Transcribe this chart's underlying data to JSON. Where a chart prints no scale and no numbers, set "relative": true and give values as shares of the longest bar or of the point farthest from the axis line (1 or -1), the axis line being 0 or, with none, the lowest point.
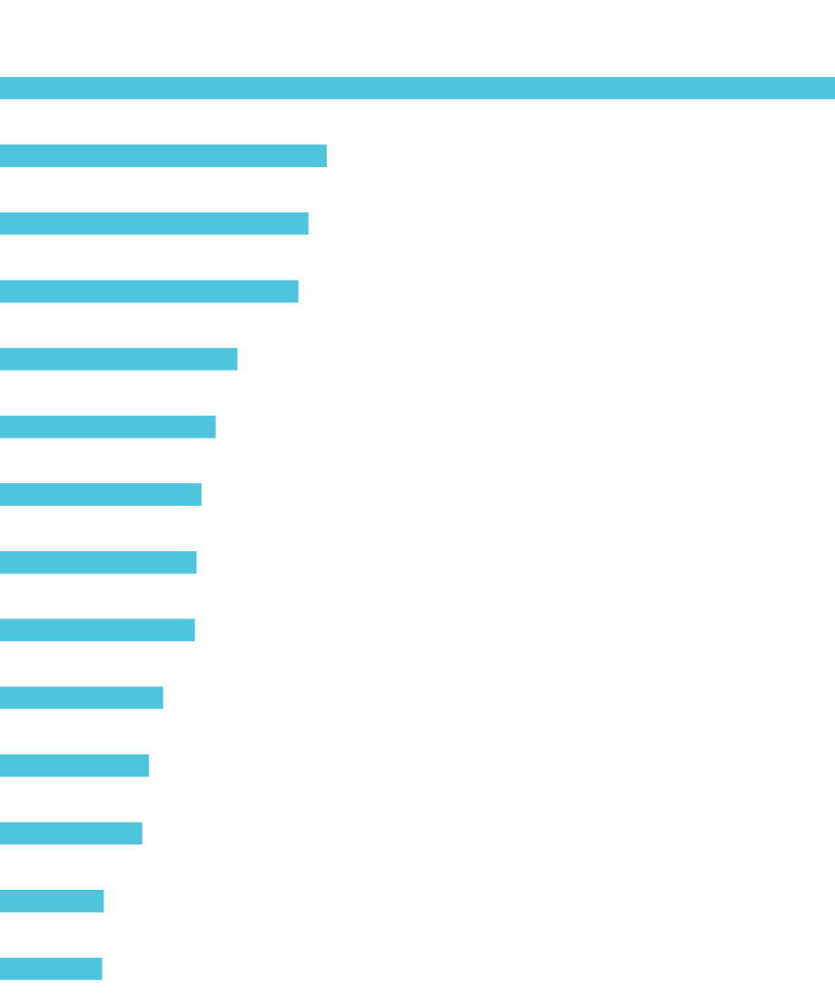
{
  "chart_data": {
    "type": "bar",
    "orientation": "horizontal",
    "relative": true,
    "categories": [
      null,
      null,
      null,
      null,
      null,
      null,
      null,
      null,
      null,
      null,
      null,
      null,
      null,
      null
    ],
    "values": [
      1,
      0.391,
      0.369,
      0.357,
      0.284,
      0.258,
      0.241,
      0.235,
      0.233,
      0.195,
      0.178,
      0.17,
      0.124,
      0.122
    ],
    "color": "#4ec5dd"
  }
}
